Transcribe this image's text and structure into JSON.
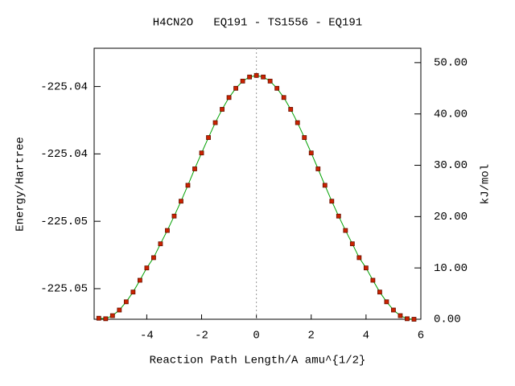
{
  "chart_data": {
    "type": "line",
    "title": "H4CN2O   EQ191 - TS1556 - EQ191",
    "xlabel": "Reaction Path Length/A amu^{1/2}",
    "ylabel": "Energy/Hartree",
    "y2label": "kJ/mol",
    "xlim": [
      -5.92,
      6.0
    ],
    "xticks": [
      -4,
      -2,
      0,
      2,
      4,
      6
    ],
    "ylim": [
      -225.05727,
      -225.03716
    ],
    "yticks": [
      {
        "value": -225.055,
        "label": "-225.05"
      },
      {
        "value": -225.05,
        "label": "-225.05"
      },
      {
        "value": -225.045,
        "label": "-225.04"
      },
      {
        "value": -225.04,
        "label": "-225.04"
      }
    ],
    "y2lim": [
      0,
      52.8
    ],
    "y2ticks": [
      {
        "value": 0,
        "label": "0.00"
      },
      {
        "value": 10,
        "label": "10.00"
      },
      {
        "value": 20,
        "label": "20.00"
      },
      {
        "value": 30,
        "label": "30.00"
      },
      {
        "value": 40,
        "label": "40.00"
      },
      {
        "value": 50,
        "label": "50.00"
      }
    ],
    "reference_x": 0,
    "x": [
      -5.75,
      -5.5,
      -5.25,
      -5.0,
      -4.75,
      -4.5,
      -4.25,
      -4.0,
      -3.75,
      -3.5,
      -3.25,
      -3.0,
      -2.75,
      -2.5,
      -2.25,
      -2.0,
      -1.75,
      -1.5,
      -1.25,
      -1.0,
      -0.75,
      -0.5,
      -0.25,
      0,
      0.25,
      0.5,
      0.75,
      1.0,
      1.25,
      1.5,
      1.75,
      2.0,
      2.25,
      2.5,
      2.75,
      3.0,
      3.25,
      3.5,
      3.75,
      4.0,
      4.25,
      4.5,
      4.75,
      5.0,
      5.25,
      5.5,
      5.75
    ],
    "series": [
      {
        "axis": "y2",
        "color": "#cc2200",
        "line_color": "#00a000",
        "values": [
          0.2,
          0.1,
          0.7,
          1.8,
          3.4,
          5.3,
          7.6,
          10.0,
          12.0,
          14.7,
          17.3,
          20.1,
          23.0,
          26.1,
          29.3,
          32.4,
          35.4,
          38.3,
          40.9,
          43.2,
          45.0,
          46.4,
          47.2,
          47.5,
          47.2,
          46.4,
          45.0,
          43.2,
          40.9,
          38.3,
          35.4,
          32.4,
          29.3,
          26.1,
          23.0,
          20.1,
          17.3,
          14.7,
          12.0,
          10.0,
          7.6,
          5.3,
          3.4,
          1.8,
          0.7,
          0.1,
          0.0
        ]
      }
    ]
  }
}
